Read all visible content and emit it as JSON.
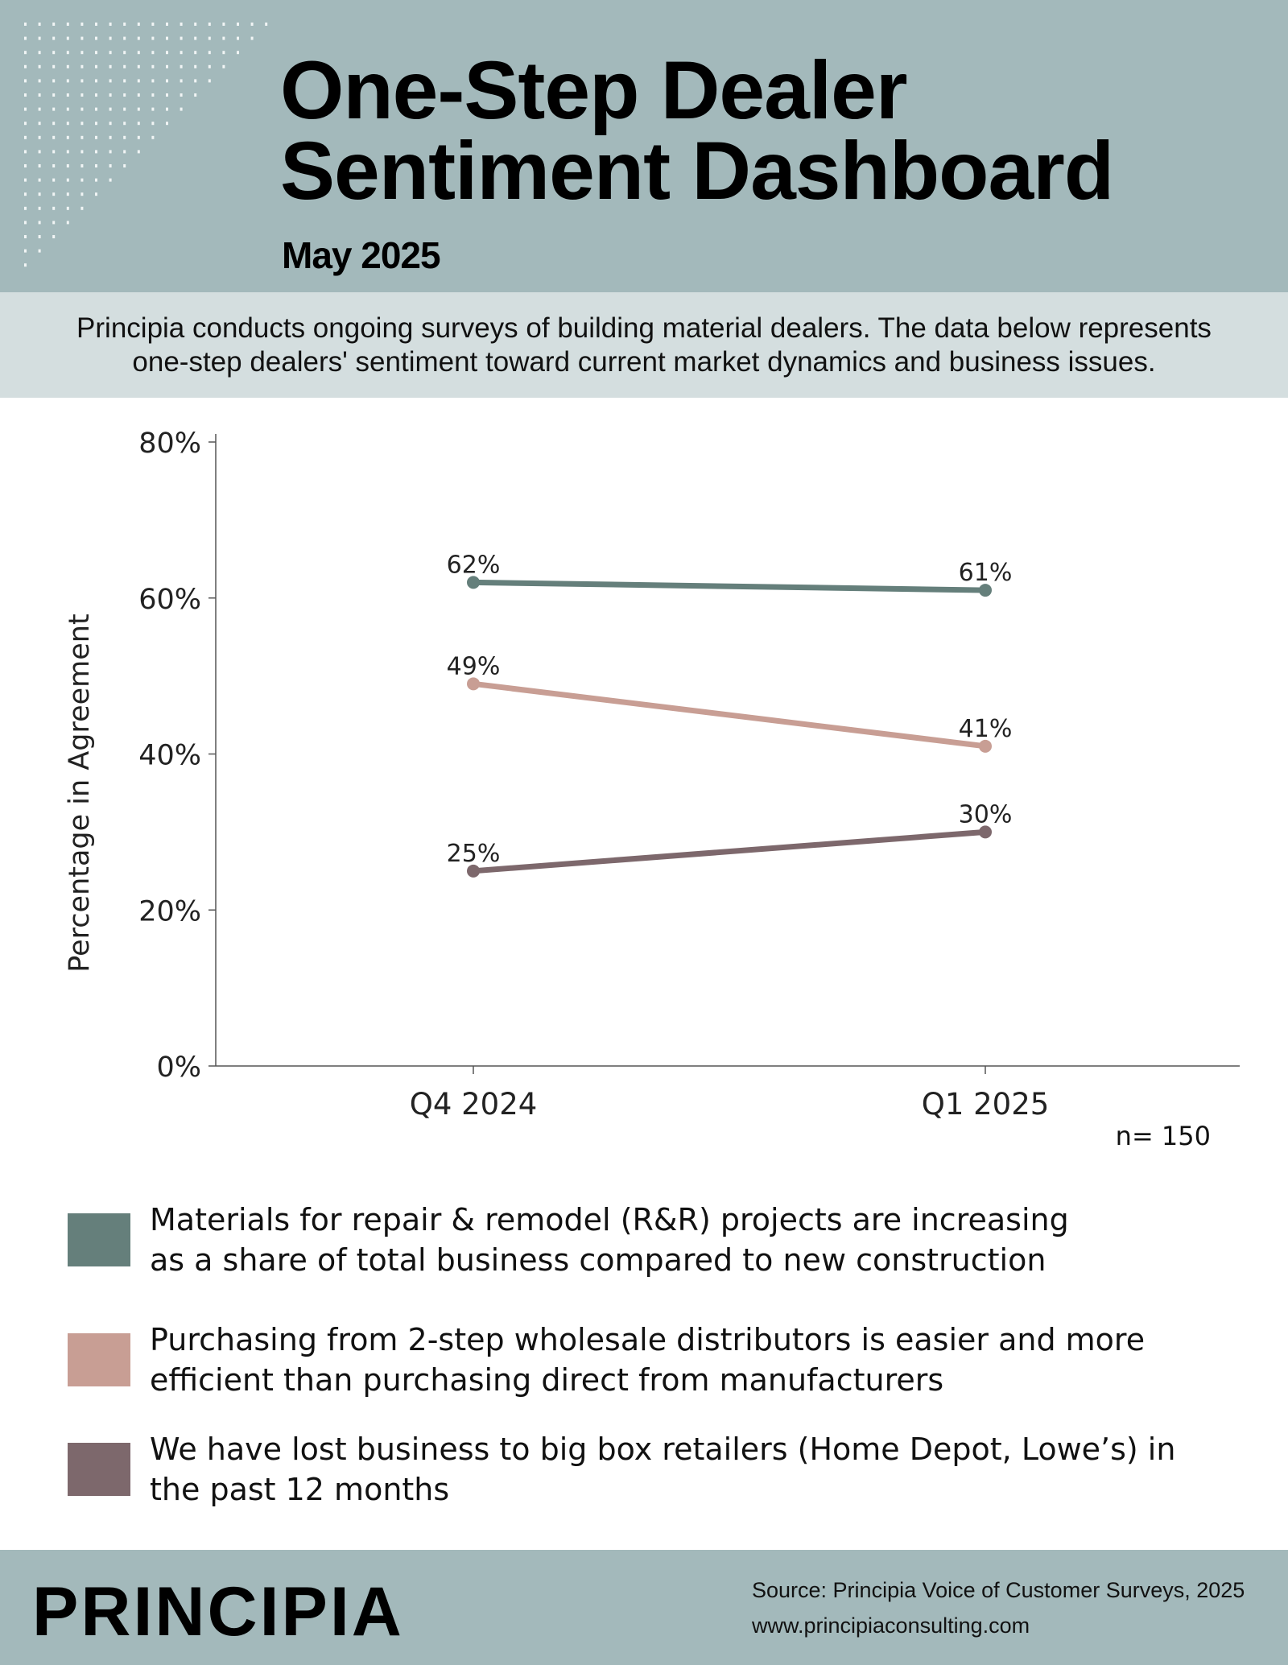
{
  "header": {
    "title_line1": "One-Step Dealer",
    "title_line2": "Sentiment Dashboard",
    "subtitle": "May 2025"
  },
  "intro": {
    "line1": "Principia conducts ongoing surveys of building material dealers. The data below represents",
    "line2": "one-step dealers' sentiment toward current market dynamics and business issues."
  },
  "chart_data": {
    "type": "line",
    "x": [
      "Q4 2024",
      "Q1 2025"
    ],
    "ylabel": "Percentage in Agreement",
    "xlabel": "",
    "ylim": [
      0,
      80
    ],
    "yticks": [
      "0%",
      "20%",
      "40%",
      "60%",
      "80%"
    ],
    "grid": false,
    "note": "n= 150",
    "series": [
      {
        "name": "Materials for repair & remodel (R&R) projects are increasing as a share of total business compared to new construction",
        "values": [
          62,
          61
        ],
        "labels": [
          "62%",
          "61%"
        ],
        "color": "#657f7b"
      },
      {
        "name": "Purchasing from 2-step wholesale distributors is easier and more efficient than purchasing direct from manufacturers",
        "values": [
          49,
          41
        ],
        "labels": [
          "49%",
          "41%"
        ],
        "color": "#c89e94"
      },
      {
        "name": "We have lost business to big box retailers (Home Depot, Lowe’s) in the past 12 months",
        "values": [
          25,
          30
        ],
        "labels": [
          "25%",
          "30%"
        ],
        "color": "#7d686c"
      }
    ]
  },
  "legend": [
    {
      "line1": "Materials for repair & remodel (R&R) projects are increasing",
      "line2": "as a share of total business compared to new construction",
      "color": "#657f7b"
    },
    {
      "line1": "Purchasing from 2-step wholesale distributors is easier and more",
      "line2": "efficient than purchasing direct from manufacturers",
      "color": "#c89e94"
    },
    {
      "line1": "We have lost business to big box retailers (Home Depot, Lowe’s) in",
      "line2": "the past 12 months",
      "color": "#7d686c"
    }
  ],
  "footer": {
    "brand": "PRINCIPIA",
    "source": "Source: Principia Voice of Customer Surveys, 2025",
    "website": "www.principiaconsulting.com"
  }
}
